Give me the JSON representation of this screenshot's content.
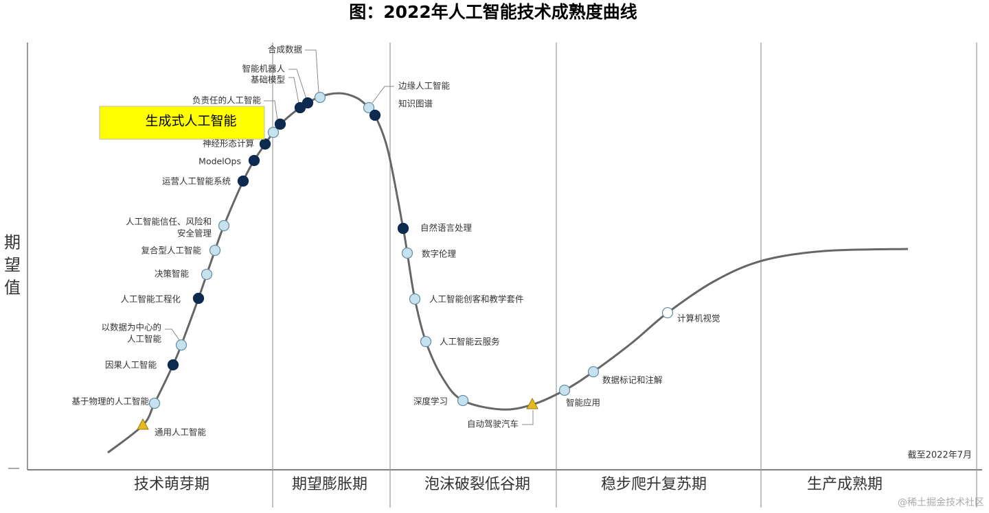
{
  "title": "图：2022年人工智能技术成熟度曲线",
  "y_axis_label": [
    "期",
    "望",
    "值"
  ],
  "phases": [
    "技术萌芽期",
    "期望膨胀期",
    "泡沫破裂低谷期",
    "稳步爬升复苏期",
    "生产成熟期"
  ],
  "note": "截至2022年7月",
  "watermark": "@稀土掘金技术社区",
  "points": [
    {
      "lines": [
        "基于物理的人工智能"
      ],
      "marker": "light"
    },
    {
      "lines": [
        "通用人工智能"
      ],
      "marker": "triangle"
    },
    {
      "lines": [
        "因果人工智能"
      ],
      "marker": "dark"
    },
    {
      "lines": [
        "以数据为中心的",
        "人工智能"
      ],
      "marker": "light"
    },
    {
      "lines": [
        "人工智能工程化"
      ],
      "marker": "dark"
    },
    {
      "lines": [
        "决策智能"
      ],
      "marker": "light"
    },
    {
      "lines": [
        "复合型人工智能"
      ],
      "marker": "light"
    },
    {
      "lines": [
        "人工智能信任、风险和",
        "安全管理"
      ],
      "marker": "light"
    },
    {
      "lines": [
        "运营人工智能系统"
      ],
      "marker": "dark"
    },
    {
      "lines": [
        "ModelOps"
      ],
      "marker": "dark"
    },
    {
      "lines": [
        "神经形态计算"
      ],
      "marker": "dark"
    },
    {
      "lines": [
        "生成式人工智能"
      ],
      "marker": "light",
      "highlight": true
    },
    {
      "lines": [
        "负责任的人工智能"
      ],
      "marker": "dark"
    },
    {
      "lines": [
        "基础模型"
      ],
      "marker": "dark"
    },
    {
      "lines": [
        "智能机器人"
      ],
      "marker": "dark"
    },
    {
      "lines": [
        "合成数据"
      ],
      "marker": "light"
    },
    {
      "lines": [
        "边缘人工智能"
      ],
      "marker": "light"
    },
    {
      "lines": [
        "知识图谱"
      ],
      "marker": "dark"
    },
    {
      "lines": [
        "自然语言处理"
      ],
      "marker": "dark"
    },
    {
      "lines": [
        "数字伦理"
      ],
      "marker": "light"
    },
    {
      "lines": [
        "人工智能创客和教学套件"
      ],
      "marker": "light"
    },
    {
      "lines": [
        "人工智能云服务"
      ],
      "marker": "light"
    },
    {
      "lines": [
        "深度学习"
      ],
      "marker": "light"
    },
    {
      "lines": [
        "自动驾驶汽车"
      ],
      "marker": "triangle"
    },
    {
      "lines": [
        "智能应用"
      ],
      "marker": "light"
    },
    {
      "lines": [
        "数据标记和注解"
      ],
      "marker": "light"
    },
    {
      "lines": [
        "计算机视觉"
      ],
      "marker": "white"
    }
  ]
}
